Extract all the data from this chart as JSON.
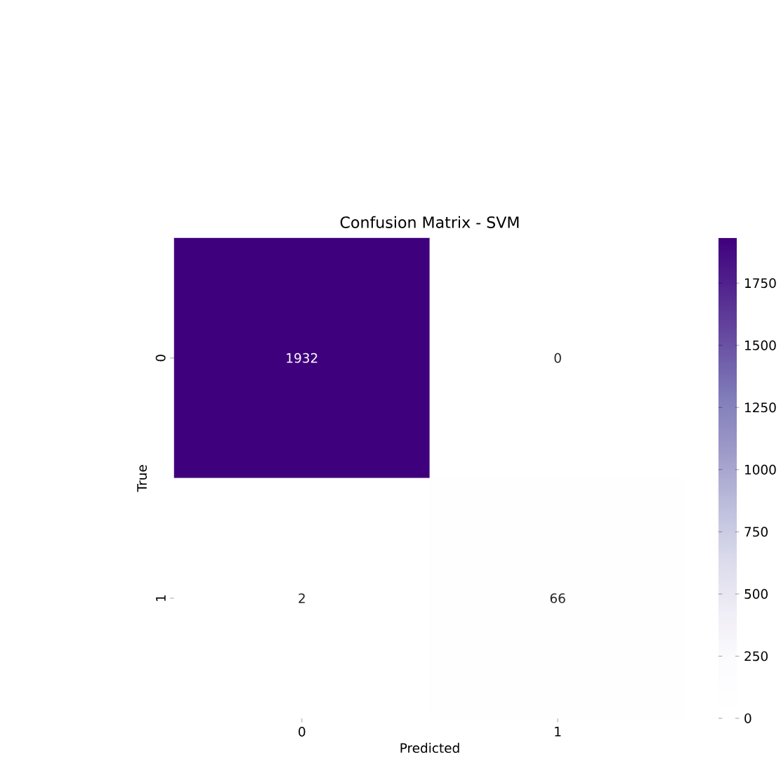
{
  "chart_data": {
    "type": "heatmap",
    "title": "Confusion Matrix - SVM",
    "xlabel": "Predicted",
    "ylabel": "True",
    "categories": [
      "0",
      "1"
    ],
    "y_categories": [
      "0",
      "1"
    ],
    "cells": [
      [
        1932,
        0
      ],
      [
        2,
        66
      ]
    ],
    "data_labels": true,
    "clim": [
      0,
      1932
    ],
    "cticks": [
      0,
      250,
      500,
      750,
      1000,
      1250,
      1500,
      1750
    ]
  }
}
